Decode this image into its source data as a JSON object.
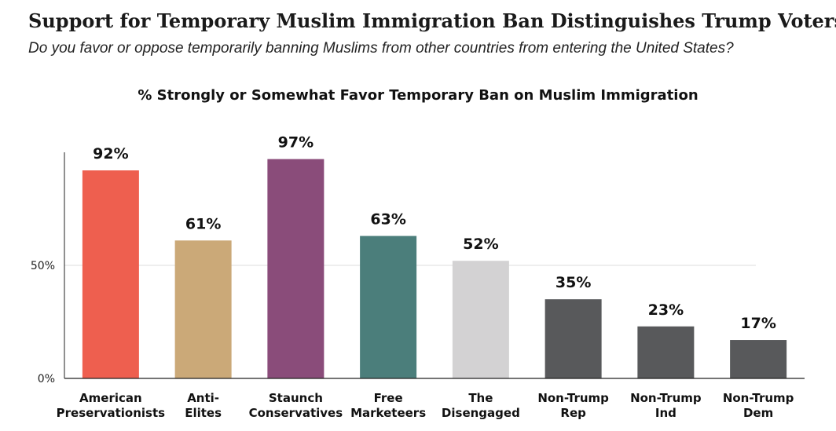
{
  "header": {
    "title": "Support for Temporary Muslim Immigration Ban Distinguishes Trump Voters",
    "subtitle": "Do you favor or oppose temporarily banning Muslims from other countries from entering the United States?"
  },
  "chart_data": {
    "type": "bar",
    "title": "% Strongly or Somewhat Favor Temporary Ban on Muslim Immigration",
    "categories": [
      [
        "American",
        "Preservationists"
      ],
      [
        "Anti-",
        "Elites"
      ],
      [
        "Staunch",
        "Conservatives"
      ],
      [
        "Free",
        "Marketeers"
      ],
      [
        "The",
        "Disengaged"
      ],
      [
        "Non-Trump",
        "Rep"
      ],
      [
        "Non-Trump",
        "Ind"
      ],
      [
        "Non-Trump",
        "Dem"
      ]
    ],
    "values": [
      92,
      61,
      97,
      63,
      52,
      35,
      23,
      17
    ],
    "value_labels": [
      "92%",
      "61%",
      "97%",
      "63%",
      "52%",
      "35%",
      "23%",
      "17%"
    ],
    "colors": [
      "#EE5F4F",
      "#CBA978",
      "#8A4C7A",
      "#4B7E7B",
      "#D3D2D3",
      "#58595B",
      "#58595B",
      "#58595B"
    ],
    "yticks": [
      0,
      50
    ],
    "ytick_labels": [
      "0%",
      "50%"
    ],
    "ylim": [
      0,
      100
    ],
    "grid": true,
    "xlabel": "",
    "ylabel": ""
  }
}
